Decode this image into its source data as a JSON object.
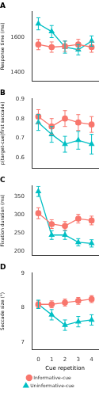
{
  "chart_data": [
    {
      "type": "line",
      "title": "A",
      "y_label": "Response time (ms)",
      "tick_labels": "y",
      "grid": false,
      "categories": [
        0,
        1,
        2,
        3,
        4
      ],
      "ylim": [
        1350,
        1750
      ],
      "yticks": [
        1400,
        1600
      ],
      "series": [
        {
          "name": "Informative-cue",
          "color": "#f8766d",
          "marker": "circle",
          "values": [
            1560,
            1545,
            1550,
            1560,
            1545
          ],
          "errors": [
            30,
            30,
            30,
            30,
            30
          ]
        },
        {
          "name": "Uninformative-cue",
          "color": "#00bfc4",
          "marker": "triangle",
          "values": [
            1680,
            1635,
            1545,
            1530,
            1580
          ],
          "errors": [
            35,
            35,
            35,
            30,
            30
          ]
        }
      ]
    },
    {
      "type": "line",
      "title": "B",
      "y_label": "p(target-cue|first saccade)",
      "tick_labels": "y",
      "grid": false,
      "categories": [
        0,
        1,
        2,
        3,
        4
      ],
      "ylim": [
        0.55,
        0.9
      ],
      "yticks": [
        0.6,
        0.7,
        0.8,
        0.9
      ],
      "series": [
        {
          "name": "Informative-cue",
          "color": "#f8766d",
          "marker": "circle",
          "values": [
            0.81,
            0.76,
            0.8,
            0.78,
            0.77
          ],
          "errors": [
            0.035,
            0.04,
            0.04,
            0.04,
            0.04
          ]
        },
        {
          "name": "Uninformative-cue",
          "color": "#00bfc4",
          "marker": "triangle",
          "values": [
            0.78,
            0.72,
            0.67,
            0.69,
            0.67
          ],
          "errors": [
            0.04,
            0.04,
            0.04,
            0.045,
            0.05
          ]
        }
      ]
    },
    {
      "type": "line",
      "title": "C",
      "y_label": "Fixation duration (ms)",
      "tick_labels": "y",
      "grid": false,
      "categories": [
        0,
        1,
        2,
        3,
        4
      ],
      "ylim": [
        190,
        380
      ],
      "yticks": [
        200,
        250,
        300,
        350
      ],
      "series": [
        {
          "name": "Informative-cue",
          "color": "#f8766d",
          "marker": "circle",
          "values": [
            305,
            275,
            270,
            290,
            285
          ],
          "errors": [
            15,
            12,
            12,
            12,
            12
          ]
        },
        {
          "name": "Uninformative-cue",
          "color": "#00bfc4",
          "marker": "triangle",
          "values": [
            365,
            245,
            245,
            225,
            222
          ],
          "errors": [
            14,
            12,
            12,
            10,
            10
          ]
        }
      ]
    },
    {
      "type": "line",
      "title": "D",
      "x_label": "Cue repetition",
      "y_label": "Saccade size (°)",
      "grid": false,
      "legend": "bottom",
      "categories": [
        0,
        1,
        2,
        3,
        4
      ],
      "ylim": [
        6.8,
        9
      ],
      "yticks": [
        7,
        8,
        9
      ],
      "series": [
        {
          "name": "Informative-cue",
          "color": "#f8766d",
          "marker": "circle",
          "values": [
            8.1,
            8.1,
            8.15,
            8.2,
            8.25
          ],
          "errors": [
            0.1,
            0.1,
            0.1,
            0.1,
            0.1
          ]
        },
        {
          "name": "Uninformative-cue",
          "color": "#00bfc4",
          "marker": "triangle",
          "values": [
            8.1,
            7.8,
            7.5,
            7.6,
            7.65
          ],
          "errors": [
            0.12,
            0.15,
            0.15,
            0.15,
            0.15
          ]
        }
      ]
    }
  ]
}
